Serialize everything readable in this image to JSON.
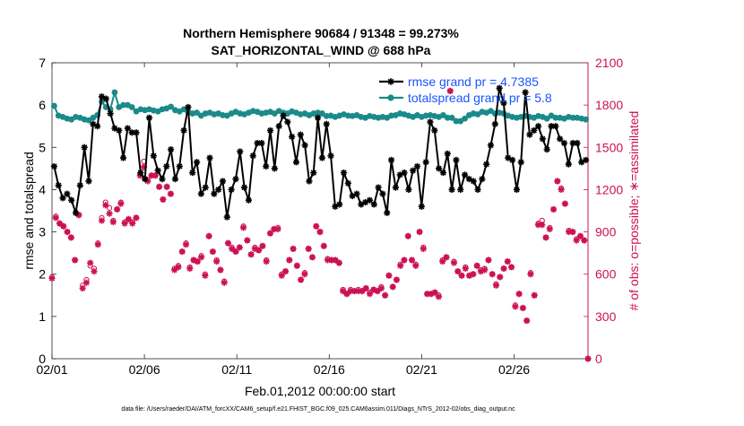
{
  "chart_data": {
    "type": "line",
    "title": "Northern Hemisphere 90684 / 91348 = 99.273%",
    "subtitle": "SAT_HORIZONTAL_WIND @ 688 hPa",
    "xlabel": "Feb.01,2012 00:00:00 start",
    "ylabel_left": "rmse and totalspread",
    "ylabel_right": "# of obs: o=possible; ∗=assimilated",
    "footer": "data file: /Users/raeder/DAI/ATM_forcXX/CAM6_setup/f.e21.FHIST_BGC.f09_025.CAM6assim.011/Diags_NTrS_2012-02/obs_diag_output.nc",
    "x_ticks": [
      0,
      5,
      10,
      15,
      20,
      25
    ],
    "x_tick_labels": [
      "02/01",
      "02/06",
      "02/11",
      "02/16",
      "02/21",
      "02/26"
    ],
    "xlim": [
      0,
      29
    ],
    "ylim_left": [
      0,
      7
    ],
    "y_ticks_left": [
      "0",
      "1",
      "2",
      "3",
      "4",
      "5",
      "6",
      "7"
    ],
    "ylim_right": [
      0,
      2100
    ],
    "y_ticks_right": [
      "0",
      "300",
      "600",
      "900",
      "1200",
      "1500",
      "1800",
      "2100"
    ],
    "grid": false,
    "legend_position": "top-right",
    "colors": {
      "rmse": "#000000",
      "spread": "#1a8a8a",
      "obs": "#cc1155",
      "legend_text": "#1a55ff"
    },
    "series": [
      {
        "name": "rmse grand pr = 4.7385",
        "axis": "left",
        "marker": "star",
        "values": [
          4.55,
          4.1,
          3.8,
          3.9,
          3.75,
          3.45,
          4.1,
          5.0,
          4.2,
          5.55,
          5.5,
          6.2,
          6.15,
          5.8,
          5.45,
          5.4,
          4.75,
          5.45,
          5.35,
          5.35,
          4.4,
          4.25,
          5.7,
          4.8,
          4.45,
          4.25,
          4.55,
          4.95,
          4.25,
          4.55,
          5.4,
          5.95,
          4.4,
          4.65,
          3.9,
          4.05,
          4.75,
          3.9,
          4.0,
          4.2,
          3.35,
          4.0,
          4.25,
          4.9,
          4.05,
          3.75,
          4.8,
          5.1,
          5.1,
          4.55,
          5.4,
          4.5,
          5.5,
          5.75,
          5.6,
          5.25,
          4.65,
          5.3,
          5.05,
          4.2,
          4.4,
          5.7,
          4.75,
          5.55,
          4.8,
          3.6,
          3.65,
          4.4,
          4.15,
          3.85,
          3.9,
          3.65,
          3.7,
          3.75,
          3.65,
          4.05,
          3.9,
          3.45,
          4.7,
          4.05,
          4.35,
          4.4,
          4.0,
          4.45,
          4.55,
          3.6,
          4.65,
          5.6,
          5.4,
          4.5,
          4.4,
          4.85,
          4.0,
          4.7,
          4.0,
          4.35,
          4.25,
          4.2,
          4.0,
          4.25,
          4.6,
          5.05,
          5.55,
          6.4,
          6.05,
          4.75,
          4.7,
          4.0,
          4.65,
          6.3,
          5.3,
          5.4,
          5.5,
          5.2,
          4.95,
          5.5,
          5.5,
          5.2,
          5.1,
          4.6,
          5.1,
          5.1,
          4.65,
          4.7
        ]
      },
      {
        "name": "totalspread grand pr = 5.8",
        "axis": "left",
        "marker": "circle",
        "values": [
          5.98,
          5.75,
          5.72,
          5.68,
          5.66,
          5.72,
          5.7,
          5.66,
          5.64,
          5.7,
          5.76,
          6.08,
          5.95,
          5.9,
          6.3,
          5.95,
          6.0,
          6.0,
          5.95,
          5.85,
          5.9,
          5.88,
          5.9,
          5.87,
          5.85,
          5.9,
          5.92,
          5.96,
          5.88,
          5.85,
          5.9,
          5.84,
          5.8,
          5.82,
          5.75,
          5.8,
          5.82,
          5.78,
          5.8,
          5.76,
          5.75,
          5.8,
          5.84,
          5.8,
          5.78,
          5.82,
          5.86,
          5.84,
          5.8,
          5.82,
          5.84,
          5.8,
          5.86,
          5.82,
          5.8,
          5.85,
          5.82,
          5.78,
          5.8,
          5.76,
          5.8,
          5.82,
          5.8,
          5.74,
          5.75,
          5.72,
          5.75,
          5.78,
          5.75,
          5.74,
          5.76,
          5.72,
          5.7,
          5.74,
          5.72,
          5.7,
          5.72,
          5.7,
          5.75,
          5.76,
          5.8,
          5.78,
          5.75,
          5.72,
          5.76,
          5.72,
          5.75,
          5.76,
          5.74,
          5.72,
          5.76,
          5.7,
          5.7,
          5.62,
          5.62,
          5.68,
          5.76,
          5.8,
          5.78,
          5.84,
          5.82,
          5.86,
          5.8,
          5.82,
          5.8,
          5.75,
          5.72,
          5.7,
          5.72,
          5.74,
          5.72,
          5.7,
          5.74,
          5.72,
          5.68,
          5.75,
          5.7,
          5.7,
          5.68,
          5.72,
          5.7,
          5.7,
          5.68,
          5.66
        ]
      },
      {
        "name": "obs assimilated",
        "axis": "right",
        "marker": "star",
        "values": [
          570,
          1000,
          960,
          940,
          900,
          860,
          700,
          1020,
          500,
          540,
          680,
          620,
          810,
          980,
          1090,
          1030,
          970,
          1060,
          1100,
          960,
          990,
          960,
          1000,
          1300,
          1360,
          1260,
          1300,
          1300,
          1220,
          1130,
          1220,
          1170,
          630,
          650,
          760,
          810,
          640,
          700,
          690,
          720,
          590,
          870,
          760,
          690,
          630,
          540,
          820,
          780,
          760,
          790,
          930,
          840,
          740,
          780,
          770,
          800,
          690,
          890,
          920,
          920,
          590,
          620,
          700,
          780,
          660,
          560,
          600,
          780,
          720,
          940,
          900,
          800,
          700,
          700,
          700,
          680,
          480,
          460,
          480,
          480,
          480,
          480,
          500,
          460,
          490,
          480,
          500,
          450,
          590,
          510,
          560,
          660,
          700,
          870,
          700,
          660,
          900,
          780,
          460,
          460,
          470,
          440,
          690,
          720,
          1900,
          680,
          620,
          590,
          640,
          590,
          600,
          660,
          620,
          630,
          700,
          600,
          520,
          580,
          640,
          690,
          650,
          370,
          460,
          360,
          270,
          600,
          450,
          950,
          950,
          860,
          920,
          1060,
          1260,
          1200,
          1100,
          900,
          900,
          840,
          870,
          840,
          0
        ]
      },
      {
        "name": "obs possible",
        "axis": "right",
        "marker": "circle",
        "values": [
          580,
          1010,
          960,
          940,
          900,
          860,
          700,
          1020,
          520,
          560,
          660,
          640,
          820,
          1000,
          1110,
          1070,
          980,
          1060,
          1110,
          970,
          990,
          970,
          1000,
          1310,
          1400,
          1270,
          1300,
          1300,
          1220,
          1130,
          1220,
          1170,
          640,
          660,
          760,
          820,
          650,
          700,
          690,
          730,
          600,
          870,
          760,
          700,
          630,
          550,
          820,
          790,
          760,
          790,
          940,
          840,
          740,
          790,
          770,
          800,
          700,
          890,
          920,
          930,
          600,
          620,
          700,
          780,
          660,
          560,
          610,
          780,
          720,
          940,
          900,
          800,
          710,
          700,
          700,
          680,
          490,
          460,
          490,
          480,
          490,
          480,
          500,
          470,
          490,
          480,
          510,
          450,
          590,
          510,
          560,
          670,
          700,
          870,
          700,
          670,
          900,
          790,
          460,
          460,
          470,
          450,
          700,
          720,
          1900,
          690,
          620,
          590,
          650,
          590,
          600,
          660,
          630,
          640,
          700,
          600,
          530,
          580,
          640,
          690,
          650,
          380,
          460,
          360,
          270,
          610,
          450,
          960,
          980,
          860,
          930,
          1060,
          1260,
          1210,
          1100,
          910,
          900,
          850,
          870,
          840,
          0
        ]
      }
    ]
  }
}
